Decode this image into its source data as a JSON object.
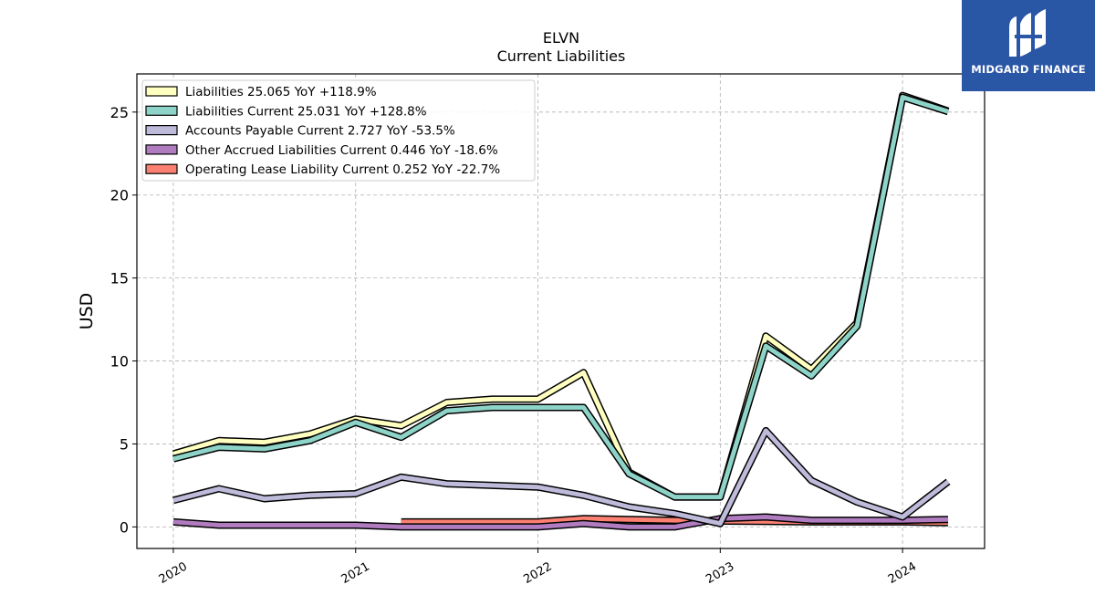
{
  "brand": {
    "name": "MIDGARD FINANCE",
    "color": "#2a56a6",
    "icon": "midgard-logo-icon"
  },
  "chart_data": {
    "type": "line",
    "title": "ELVN",
    "subtitle": "Current  Liabilities",
    "xlabel": "",
    "ylabel": "USD",
    "xlim": [
      2019.8,
      2024.45
    ],
    "ylim": [
      -1.3,
      27.3
    ],
    "yticks": [
      0,
      5,
      10,
      15,
      20,
      25
    ],
    "xticks": [
      2020,
      2021,
      2022,
      2023,
      2024
    ],
    "grid": true,
    "legend_position": "top-left",
    "x": [
      2020.0,
      2020.25,
      2020.5,
      2020.75,
      2021.0,
      2021.25,
      2021.5,
      2021.75,
      2022.0,
      2022.25,
      2022.5,
      2022.75,
      2023.0,
      2023.25,
      2023.5,
      2023.75,
      2024.0,
      2024.25
    ],
    "series": [
      {
        "name": "Liabilities",
        "legend": "Liabilities  25.065 YoY +118.9%",
        "color": "#ffffbf",
        "values": [
          4.4,
          5.2,
          5.1,
          5.6,
          6.5,
          6.1,
          7.5,
          7.7,
          7.7,
          9.3,
          3.3,
          1.8,
          1.8,
          11.5,
          9.5,
          12.3,
          26.0,
          25.065
        ]
      },
      {
        "name": "Liabilities Current",
        "legend": "Liabilities Current  25.031 YoY +128.8%",
        "color": "#8dd3c7",
        "values": [
          4.1,
          4.8,
          4.7,
          5.2,
          6.3,
          5.4,
          7.0,
          7.2,
          7.2,
          7.2,
          3.2,
          1.8,
          1.8,
          10.9,
          9.1,
          12.1,
          25.9,
          25.031
        ]
      },
      {
        "name": "Accounts Payable Current",
        "legend": "Accounts Payable Current  2.727 YoY -53.5%",
        "color": "#bebada",
        "values": [
          1.6,
          2.3,
          1.7,
          1.9,
          2.0,
          3.0,
          2.6,
          2.5,
          2.4,
          1.9,
          1.2,
          0.8,
          0.2,
          5.8,
          2.8,
          1.5,
          0.6,
          2.727
        ]
      },
      {
        "name": "Other Accrued Liabilities Current",
        "legend": "Other Accrued Liabilities Current  0.446 YoY -18.6%",
        "color": "#b07cbf",
        "values": [
          0.3,
          0.1,
          0.1,
          0.1,
          0.1,
          0.0,
          0.0,
          0.0,
          0.0,
          0.2,
          0.0,
          0.0,
          0.5,
          0.6,
          0.4,
          0.4,
          0.4,
          0.446
        ]
      },
      {
        "name": "Operating Lease Liability Current",
        "legend": "Operating Lease Liability Current  0.252 YoY -22.7%",
        "color": "#fb8072",
        "values": [
          null,
          null,
          null,
          null,
          null,
          0.3,
          0.3,
          0.3,
          0.3,
          0.5,
          0.45,
          0.4,
          0.35,
          0.33,
          0.3,
          0.3,
          0.3,
          0.252
        ]
      }
    ]
  }
}
